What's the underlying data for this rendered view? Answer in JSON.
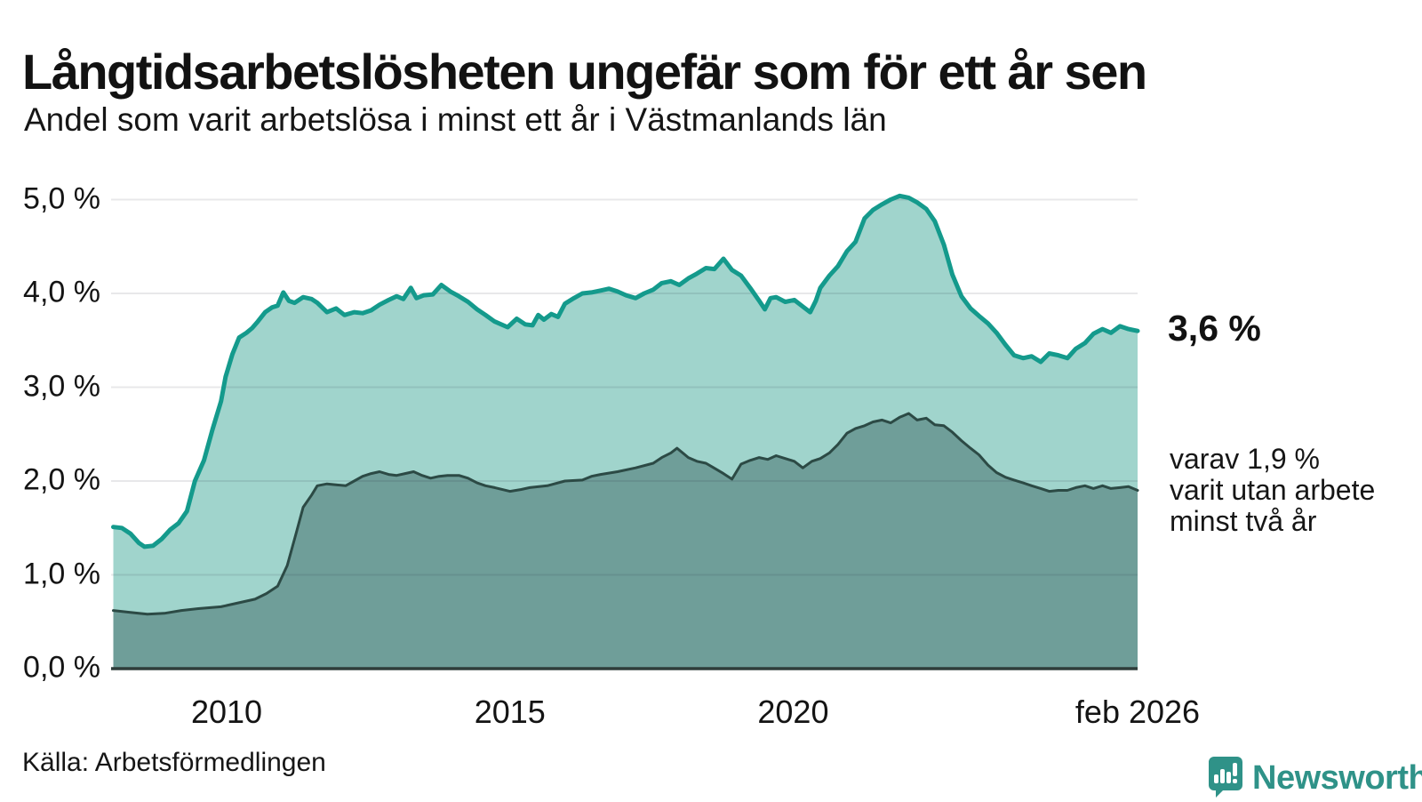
{
  "header": {
    "title": "Långtidsarbetslösheten ungefär som för ett år sen",
    "subtitle": "Andel som varit arbetslösa i minst ett år i Västmanlands län"
  },
  "annotations": {
    "end_value": "3,6 %",
    "secondary_line1": "varav 1,9 %",
    "secondary_line2": "varit utan arbete",
    "secondary_line3": "minst två år"
  },
  "footer": {
    "source": "Källa: Arbetsförmedlingen",
    "brand": "Newsworthy"
  },
  "colors": {
    "teal_line": "#149a8c",
    "teal_fill": "#a0d4cc",
    "dark_line": "#2c4a45",
    "dark_fill": "#6f9e99",
    "grid": "rgba(30,30,50,0.10)",
    "axis": "#2f3d3a",
    "brand_teal": "#2f9288"
  },
  "chart_data": {
    "type": "area",
    "title": "Långtidsarbetslösheten ungefär som för ett år sen",
    "subtitle": "Andel som varit arbetslösa i minst ett år i Västmanlands län",
    "unit": "%",
    "xlim": [
      2007.96,
      2026.08
    ],
    "ylim": [
      0,
      5.15
    ],
    "grid": true,
    "x_ticks": [
      {
        "label": "2010",
        "x": 2010
      },
      {
        "label": "2015",
        "x": 2015
      },
      {
        "label": "2020",
        "x": 2020
      },
      {
        "label": "feb 2026",
        "x": 2026.08
      }
    ],
    "y_ticks": [
      {
        "label": "0,0 %",
        "value": 0
      },
      {
        "label": "1,0 %",
        "value": 1
      },
      {
        "label": "2,0 %",
        "value": 2
      },
      {
        "label": "3,0 %",
        "value": 3
      },
      {
        "label": "4,0 %",
        "value": 4
      },
      {
        "label": "5,0 %",
        "value": 5
      }
    ],
    "series": [
      {
        "name": "arbetslösa minst ett år",
        "end_value": 3.6,
        "points": [
          [
            2008.0,
            1.51
          ],
          [
            2008.15,
            1.5
          ],
          [
            2008.3,
            1.44
          ],
          [
            2008.45,
            1.34
          ],
          [
            2008.55,
            1.3
          ],
          [
            2008.7,
            1.31
          ],
          [
            2008.85,
            1.38
          ],
          [
            2009.0,
            1.48
          ],
          [
            2009.15,
            1.55
          ],
          [
            2009.3,
            1.68
          ],
          [
            2009.44,
            2.0
          ],
          [
            2009.6,
            2.22
          ],
          [
            2009.75,
            2.55
          ],
          [
            2009.9,
            2.85
          ],
          [
            2009.98,
            3.11
          ],
          [
            2010.1,
            3.35
          ],
          [
            2010.22,
            3.53
          ],
          [
            2010.35,
            3.58
          ],
          [
            2010.45,
            3.63
          ],
          [
            2010.55,
            3.7
          ],
          [
            2010.68,
            3.8
          ],
          [
            2010.8,
            3.85
          ],
          [
            2010.9,
            3.87
          ],
          [
            2011.0,
            4.01
          ],
          [
            2011.1,
            3.92
          ],
          [
            2011.2,
            3.9
          ],
          [
            2011.35,
            3.96
          ],
          [
            2011.5,
            3.94
          ],
          [
            2011.6,
            3.9
          ],
          [
            2011.77,
            3.8
          ],
          [
            2011.93,
            3.84
          ],
          [
            2012.08,
            3.77
          ],
          [
            2012.25,
            3.8
          ],
          [
            2012.4,
            3.79
          ],
          [
            2012.55,
            3.82
          ],
          [
            2012.7,
            3.88
          ],
          [
            2012.86,
            3.93
          ],
          [
            2013.0,
            3.97
          ],
          [
            2013.12,
            3.94
          ],
          [
            2013.25,
            4.06
          ],
          [
            2013.35,
            3.95
          ],
          [
            2013.48,
            3.98
          ],
          [
            2013.64,
            3.99
          ],
          [
            2013.79,
            4.09
          ],
          [
            2013.95,
            4.02
          ],
          [
            2014.1,
            3.97
          ],
          [
            2014.26,
            3.91
          ],
          [
            2014.42,
            3.83
          ],
          [
            2014.57,
            3.77
          ],
          [
            2014.73,
            3.7
          ],
          [
            2014.96,
            3.64
          ],
          [
            2015.12,
            3.73
          ],
          [
            2015.27,
            3.67
          ],
          [
            2015.4,
            3.66
          ],
          [
            2015.5,
            3.77
          ],
          [
            2015.6,
            3.72
          ],
          [
            2015.73,
            3.78
          ],
          [
            2015.85,
            3.75
          ],
          [
            2015.97,
            3.89
          ],
          [
            2016.13,
            3.95
          ],
          [
            2016.28,
            4.0
          ],
          [
            2016.44,
            4.01
          ],
          [
            2016.6,
            4.03
          ],
          [
            2016.75,
            4.05
          ],
          [
            2016.9,
            4.02
          ],
          [
            2017.05,
            3.98
          ],
          [
            2017.22,
            3.95
          ],
          [
            2017.37,
            4.0
          ],
          [
            2017.53,
            4.04
          ],
          [
            2017.68,
            4.11
          ],
          [
            2017.84,
            4.13
          ],
          [
            2017.99,
            4.09
          ],
          [
            2018.15,
            4.16
          ],
          [
            2018.3,
            4.21
          ],
          [
            2018.46,
            4.27
          ],
          [
            2018.61,
            4.26
          ],
          [
            2018.77,
            4.37
          ],
          [
            2018.92,
            4.25
          ],
          [
            2019.08,
            4.19
          ],
          [
            2019.24,
            4.06
          ],
          [
            2019.39,
            3.93
          ],
          [
            2019.5,
            3.83
          ],
          [
            2019.6,
            3.95
          ],
          [
            2019.7,
            3.96
          ],
          [
            2019.86,
            3.91
          ],
          [
            2020.02,
            3.93
          ],
          [
            2020.17,
            3.86
          ],
          [
            2020.3,
            3.8
          ],
          [
            2020.4,
            3.92
          ],
          [
            2020.48,
            4.06
          ],
          [
            2020.64,
            4.19
          ],
          [
            2020.79,
            4.29
          ],
          [
            2020.95,
            4.45
          ],
          [
            2021.1,
            4.55
          ],
          [
            2021.26,
            4.8
          ],
          [
            2021.41,
            4.89
          ],
          [
            2021.57,
            4.95
          ],
          [
            2021.72,
            5.0
          ],
          [
            2021.88,
            5.04
          ],
          [
            2022.04,
            5.02
          ],
          [
            2022.19,
            4.97
          ],
          [
            2022.35,
            4.9
          ],
          [
            2022.5,
            4.77
          ],
          [
            2022.66,
            4.52
          ],
          [
            2022.81,
            4.2
          ],
          [
            2022.97,
            3.97
          ],
          [
            2023.13,
            3.84
          ],
          [
            2023.28,
            3.76
          ],
          [
            2023.44,
            3.68
          ],
          [
            2023.59,
            3.58
          ],
          [
            2023.75,
            3.45
          ],
          [
            2023.9,
            3.34
          ],
          [
            2024.06,
            3.31
          ],
          [
            2024.21,
            3.33
          ],
          [
            2024.37,
            3.27
          ],
          [
            2024.52,
            3.36
          ],
          [
            2024.68,
            3.34
          ],
          [
            2024.84,
            3.31
          ],
          [
            2024.99,
            3.41
          ],
          [
            2025.15,
            3.47
          ],
          [
            2025.3,
            3.57
          ],
          [
            2025.46,
            3.62
          ],
          [
            2025.61,
            3.58
          ],
          [
            2025.77,
            3.65
          ],
          [
            2025.92,
            3.62
          ],
          [
            2026.08,
            3.6
          ]
        ]
      },
      {
        "name": "varav utan arbete minst två år",
        "end_value": 1.9,
        "points": [
          [
            2008.0,
            0.62
          ],
          [
            2008.3,
            0.6
          ],
          [
            2008.6,
            0.58
          ],
          [
            2008.9,
            0.59
          ],
          [
            2009.2,
            0.62
          ],
          [
            2009.5,
            0.64
          ],
          [
            2009.9,
            0.66
          ],
          [
            2010.2,
            0.7
          ],
          [
            2010.5,
            0.74
          ],
          [
            2010.7,
            0.8
          ],
          [
            2010.9,
            0.88
          ],
          [
            2011.07,
            1.1
          ],
          [
            2011.23,
            1.45
          ],
          [
            2011.35,
            1.72
          ],
          [
            2011.5,
            1.85
          ],
          [
            2011.6,
            1.95
          ],
          [
            2011.77,
            1.97
          ],
          [
            2011.93,
            1.96
          ],
          [
            2012.1,
            1.95
          ],
          [
            2012.25,
            2.0
          ],
          [
            2012.4,
            2.05
          ],
          [
            2012.55,
            2.08
          ],
          [
            2012.7,
            2.1
          ],
          [
            2012.86,
            2.07
          ],
          [
            2013.0,
            2.06
          ],
          [
            2013.15,
            2.08
          ],
          [
            2013.3,
            2.1
          ],
          [
            2013.45,
            2.06
          ],
          [
            2013.6,
            2.03
          ],
          [
            2013.75,
            2.05
          ],
          [
            2013.9,
            2.06
          ],
          [
            2014.1,
            2.06
          ],
          [
            2014.26,
            2.03
          ],
          [
            2014.42,
            1.98
          ],
          [
            2014.57,
            1.95
          ],
          [
            2014.73,
            1.93
          ],
          [
            2015.0,
            1.89
          ],
          [
            2015.2,
            1.91
          ],
          [
            2015.35,
            1.93
          ],
          [
            2015.66,
            1.95
          ],
          [
            2015.97,
            2.0
          ],
          [
            2016.28,
            2.01
          ],
          [
            2016.44,
            2.05
          ],
          [
            2016.6,
            2.07
          ],
          [
            2016.9,
            2.1
          ],
          [
            2017.22,
            2.14
          ],
          [
            2017.53,
            2.19
          ],
          [
            2017.68,
            2.25
          ],
          [
            2017.84,
            2.3
          ],
          [
            2017.95,
            2.35
          ],
          [
            2018.15,
            2.25
          ],
          [
            2018.3,
            2.21
          ],
          [
            2018.46,
            2.19
          ],
          [
            2018.6,
            2.14
          ],
          [
            2018.77,
            2.08
          ],
          [
            2018.92,
            2.02
          ],
          [
            2019.08,
            2.18
          ],
          [
            2019.24,
            2.22
          ],
          [
            2019.4,
            2.25
          ],
          [
            2019.55,
            2.23
          ],
          [
            2019.7,
            2.27
          ],
          [
            2019.86,
            2.24
          ],
          [
            2020.02,
            2.21
          ],
          [
            2020.17,
            2.14
          ],
          [
            2020.33,
            2.21
          ],
          [
            2020.48,
            2.24
          ],
          [
            2020.64,
            2.3
          ],
          [
            2020.79,
            2.39
          ],
          [
            2020.95,
            2.51
          ],
          [
            2021.1,
            2.56
          ],
          [
            2021.26,
            2.59
          ],
          [
            2021.41,
            2.63
          ],
          [
            2021.57,
            2.65
          ],
          [
            2021.72,
            2.62
          ],
          [
            2021.88,
            2.68
          ],
          [
            2022.04,
            2.72
          ],
          [
            2022.19,
            2.65
          ],
          [
            2022.35,
            2.67
          ],
          [
            2022.5,
            2.6
          ],
          [
            2022.66,
            2.59
          ],
          [
            2022.81,
            2.52
          ],
          [
            2022.97,
            2.43
          ],
          [
            2023.13,
            2.35
          ],
          [
            2023.28,
            2.28
          ],
          [
            2023.44,
            2.17
          ],
          [
            2023.59,
            2.09
          ],
          [
            2023.75,
            2.04
          ],
          [
            2023.9,
            2.01
          ],
          [
            2024.06,
            1.98
          ],
          [
            2024.21,
            1.95
          ],
          [
            2024.37,
            1.92
          ],
          [
            2024.52,
            1.89
          ],
          [
            2024.68,
            1.9
          ],
          [
            2024.84,
            1.9
          ],
          [
            2024.99,
            1.93
          ],
          [
            2025.15,
            1.95
          ],
          [
            2025.3,
            1.92
          ],
          [
            2025.46,
            1.95
          ],
          [
            2025.61,
            1.92
          ],
          [
            2025.77,
            1.93
          ],
          [
            2025.92,
            1.94
          ],
          [
            2026.08,
            1.9
          ]
        ]
      }
    ]
  }
}
